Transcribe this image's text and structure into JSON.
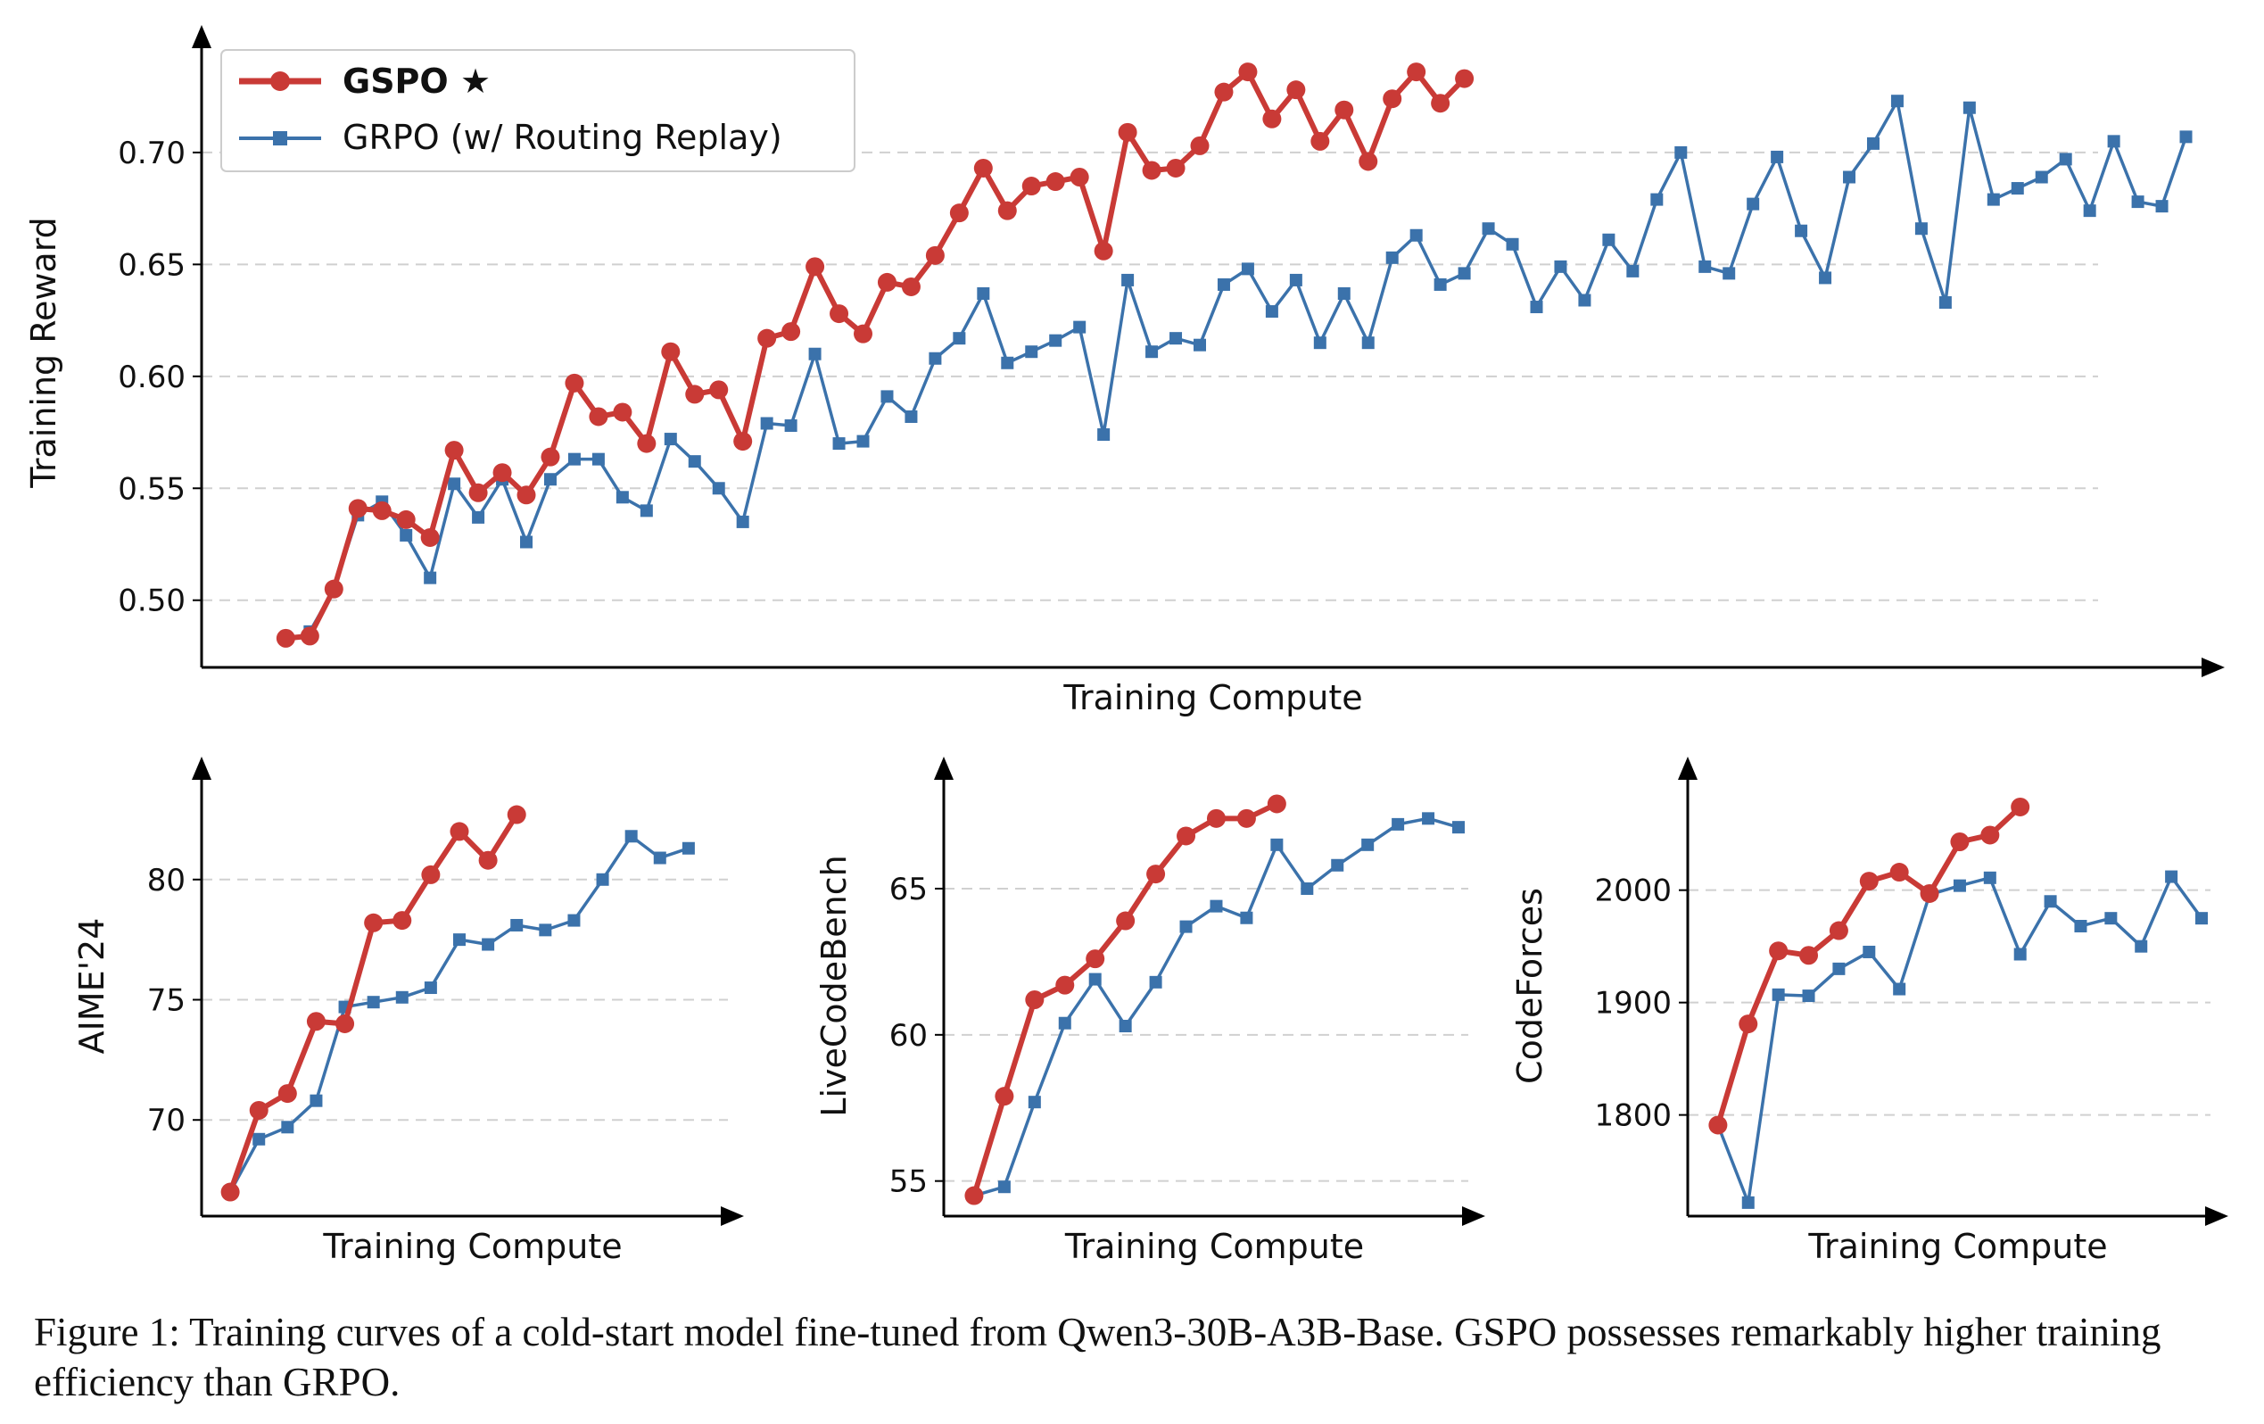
{
  "colors": {
    "gspo": "#c93a36",
    "grpo": "#3b72ab",
    "grid": "#d0d0d0",
    "axis": "#000000"
  },
  "legend": {
    "gspo_label": "GSPO ★",
    "grpo_label": "GRPO (w/ Routing Replay)"
  },
  "caption": "Figure 1: Training curves of a cold-start model fine-tuned from Qwen3-30B-A3B-Base. GSPO possesses remarkably higher training efficiency than GRPO.",
  "chart_data": [
    {
      "type": "line",
      "xlabel": "Training Compute",
      "ylabel": "Training Reward",
      "yticks": [
        0.5,
        0.55,
        0.6,
        0.65,
        0.7
      ],
      "ylim": [
        0.47,
        0.745
      ],
      "xlim": [
        -3.5,
        79.5
      ],
      "grid": "horizontal dashed",
      "legend_position": "top-left",
      "series": [
        {
          "name": "GSPO ★",
          "x_start": 0,
          "values": [
            0.483,
            0.484,
            0.505,
            0.541,
            0.54,
            0.536,
            0.528,
            0.567,
            0.548,
            0.557,
            0.547,
            0.564,
            0.597,
            0.582,
            0.584,
            0.57,
            0.611,
            0.592,
            0.594,
            0.571,
            0.617,
            0.62,
            0.649,
            0.628,
            0.619,
            0.642,
            0.64,
            0.654,
            0.673,
            0.693,
            0.674,
            0.685,
            0.687,
            0.689,
            0.656,
            0.709,
            0.692,
            0.693,
            0.703,
            0.727,
            0.736,
            0.715,
            0.728,
            0.705,
            0.719,
            0.696,
            0.724,
            0.736,
            0.722,
            0.733
          ]
        },
        {
          "name": "GRPO (w/ Routing Replay)",
          "x_start": 1,
          "values": [
            0.486,
            0.505,
            0.538,
            0.544,
            0.529,
            0.51,
            0.552,
            0.537,
            0.554,
            0.526,
            0.554,
            0.563,
            0.563,
            0.546,
            0.54,
            0.572,
            0.562,
            0.55,
            0.535,
            0.579,
            0.578,
            0.61,
            0.57,
            0.571,
            0.591,
            0.582,
            0.608,
            0.617,
            0.637,
            0.606,
            0.611,
            0.616,
            0.622,
            0.574,
            0.643,
            0.611,
            0.617,
            0.614,
            0.641,
            0.648,
            0.629,
            0.643,
            0.615,
            0.637,
            0.615,
            0.653,
            0.663,
            0.641,
            0.646,
            0.666,
            0.659,
            0.631,
            0.649,
            0.634,
            0.661,
            0.647,
            0.679,
            0.7,
            0.649,
            0.646,
            0.677,
            0.698,
            0.665,
            0.644,
            0.689,
            0.704,
            0.723,
            0.666,
            0.633,
            0.72,
            0.679,
            0.684,
            0.689,
            0.697,
            0.674,
            0.705,
            0.678,
            0.676,
            0.707
          ]
        }
      ]
    },
    {
      "type": "line",
      "xlabel": "Training Compute",
      "ylabel": "AIME'24",
      "yticks": [
        70,
        75,
        80
      ],
      "ylim": [
        66,
        84
      ],
      "xlim": [
        -1,
        17
      ],
      "grid": "horizontal dashed",
      "series": [
        {
          "name": "GSPO ★",
          "x_start": 0,
          "values": [
            67.0,
            70.4,
            71.1,
            74.1,
            74.0,
            78.2,
            78.3,
            80.2,
            82.0,
            80.8,
            82.7
          ]
        },
        {
          "name": "GRPO (w/ Routing Replay)",
          "x_start": 0,
          "values": [
            67.0,
            69.2,
            69.7,
            70.8,
            74.7,
            74.9,
            75.1,
            75.5,
            77.5,
            77.3,
            78.1,
            77.9,
            78.3,
            80.0,
            81.8,
            80.9,
            81.3
          ]
        }
      ]
    },
    {
      "type": "line",
      "xlabel": "Training Compute",
      "ylabel": "LiveCodeBench",
      "yticks": [
        55,
        60,
        65
      ],
      "ylim": [
        53.8,
        68.6
      ],
      "xlim": [
        -1,
        16
      ],
      "grid": "horizontal dashed",
      "series": [
        {
          "name": "GSPO ★",
          "x_start": 0,
          "values": [
            54.5,
            57.9,
            61.2,
            61.7,
            62.6,
            63.9,
            65.5,
            66.8,
            67.4,
            67.4,
            67.9
          ]
        },
        {
          "name": "GRPO (w/ Routing Replay)",
          "x_start": 0,
          "values": [
            54.5,
            54.8,
            57.7,
            60.4,
            61.9,
            60.3,
            61.8,
            63.7,
            64.4,
            64.0,
            66.5,
            65.0,
            65.8,
            66.5,
            67.2,
            67.4,
            67.1
          ]
        }
      ]
    },
    {
      "type": "line",
      "xlabel": "Training Compute",
      "ylabel": "CodeForces",
      "yticks": [
        1800,
        1900,
        2000
      ],
      "ylim": [
        1710,
        2095
      ],
      "xlim": [
        -1,
        16
      ],
      "grid": "horizontal dashed",
      "series": [
        {
          "name": "GSPO ★",
          "x_start": 0,
          "values": [
            1791,
            1881,
            1946,
            1942,
            1964,
            2008,
            2016,
            1997,
            2043,
            2049,
            2074
          ]
        },
        {
          "name": "GRPO (w/ Routing Replay)",
          "x_start": 0,
          "values": [
            1791,
            1722,
            1907,
            1906,
            1930,
            1945,
            1912,
            1996,
            2004,
            2011,
            1943,
            1990,
            1968,
            1975,
            1950,
            2012,
            1975
          ]
        }
      ]
    }
  ]
}
